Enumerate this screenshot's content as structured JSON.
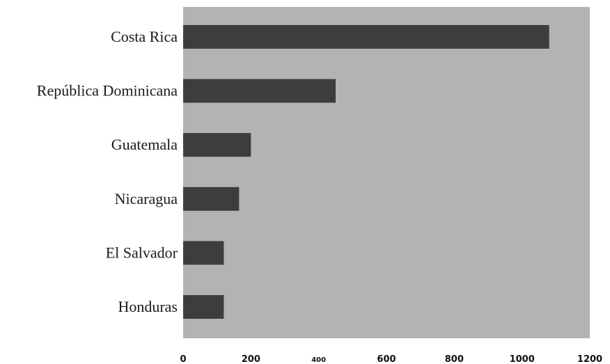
{
  "chart_data": {
    "type": "bar",
    "orientation": "horizontal",
    "title": "",
    "categories": [
      "Costa Rica",
      "República Dominicana",
      "Guatemala",
      "Nicaragua",
      "El Salvador",
      "Honduras"
    ],
    "values": [
      1080,
      450,
      200,
      165,
      120,
      120
    ],
    "xlim": [
      0,
      1200
    ],
    "xticks": [
      0,
      200,
      400,
      600,
      800,
      1000,
      1200
    ],
    "xlabel": "",
    "ylabel": "",
    "grid": false,
    "legend": "none",
    "colors": {
      "bar": "#3d3d3d",
      "plot_background": "#b3b3b3",
      "page_background": "#ffffff"
    }
  }
}
